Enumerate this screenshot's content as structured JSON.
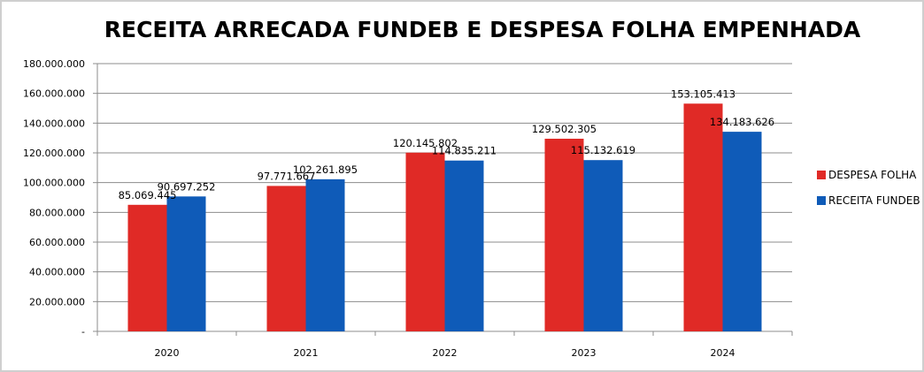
{
  "chart_data": {
    "type": "bar",
    "title": "RECEITA ARRECADA FUNDEB E DESPESA FOLHA EMPENHADA",
    "xlabel": "",
    "ylabel": "",
    "categories": [
      "2020",
      "2021",
      "2022",
      "2023",
      "2024"
    ],
    "series": [
      {
        "name": "DESPESA FOLHA",
        "color": "#e02a26",
        "values": [
          85069445,
          97771667,
          120145802,
          129502305,
          153105413
        ],
        "labels": [
          "85.069.445",
          "97.771.667",
          "120.145.802",
          "129.502.305",
          "153.105.413"
        ]
      },
      {
        "name": "RECEITA FUNDEB",
        "color": "#0f5bb8",
        "values": [
          90697252,
          102261895,
          114835211,
          115132619,
          134183626
        ],
        "labels": [
          "90.697.252",
          "102.261.895",
          "114.835.211",
          "115.132.619",
          "134.183.626"
        ]
      }
    ],
    "ylim": [
      0,
      180000000
    ],
    "yticks": [
      {
        "value": 0,
        "label": "-"
      },
      {
        "value": 20000000,
        "label": "20.000.000"
      },
      {
        "value": 40000000,
        "label": "40.000.000"
      },
      {
        "value": 60000000,
        "label": "60.000.000"
      },
      {
        "value": 80000000,
        "label": "80.000.000"
      },
      {
        "value": 100000000,
        "label": "100.000.000"
      },
      {
        "value": 120000000,
        "label": "120.000.000"
      },
      {
        "value": 140000000,
        "label": "140.000.000"
      },
      {
        "value": 160000000,
        "label": "160.000.000"
      },
      {
        "value": 180000000,
        "label": "180.000.000"
      }
    ],
    "grid": true,
    "legend_position": "right"
  }
}
